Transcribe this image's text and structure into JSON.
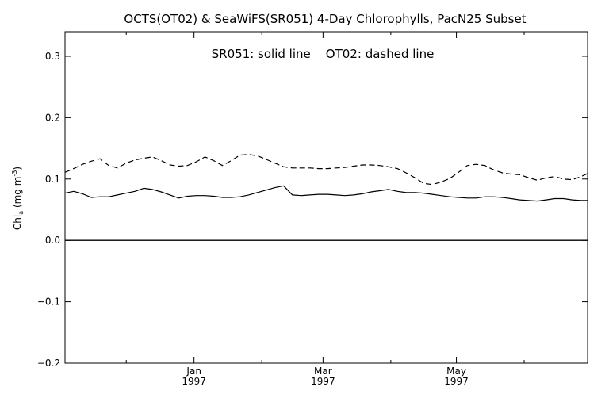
{
  "chart_data": {
    "type": "line",
    "title": "OCTS(OT02) & SeaWiFS(SR051) 4-Day Chlorophylls, PacN25 Subset",
    "annotation": "SR051: solid line    OT02: dashed line",
    "ylabel": {
      "main": "Chl",
      "subscript": "a",
      "units_prefix": " (mg m",
      "units_superscript": "-3",
      "units_suffix": ")"
    },
    "ylim": [
      -0.2,
      0.34
    ],
    "yticks": [
      {
        "v": 0.3,
        "label": "0.3"
      },
      {
        "v": 0.2,
        "label": "0.2"
      },
      {
        "v": 0.1,
        "label": "0.1"
      },
      {
        "v": 0.0,
        "label": "0.0"
      },
      {
        "v": -0.1,
        "label": "−0.1"
      },
      {
        "v": -0.2,
        "label": "−0.2"
      }
    ],
    "xlim": [
      "1996-11-03",
      "1997-06-30"
    ],
    "x_major_ticks": [
      {
        "date": "1997-01-01",
        "label": "Jan",
        "year": "1997"
      },
      {
        "date": "1997-03-01",
        "label": "Mar",
        "year": "1997"
      },
      {
        "date": "1997-05-01",
        "label": "May",
        "year": "1997"
      }
    ],
    "x_minor_ticks": [
      "1996-12-01",
      "1997-02-01",
      "1997-04-01",
      "1997-06-01"
    ],
    "zero_line": true,
    "grid": false,
    "series": [
      {
        "name": "SR051",
        "style": "solid",
        "x": [
          "1996-11-03",
          "1996-11-07",
          "1996-11-11",
          "1996-11-15",
          "1996-11-19",
          "1996-11-23",
          "1996-11-27",
          "1996-12-01",
          "1996-12-05",
          "1996-12-09",
          "1996-12-13",
          "1996-12-17",
          "1996-12-21",
          "1996-12-25",
          "1996-12-29",
          "1997-01-02",
          "1997-01-06",
          "1997-01-10",
          "1997-01-14",
          "1997-01-18",
          "1997-01-22",
          "1997-01-26",
          "1997-01-30",
          "1997-02-03",
          "1997-02-07",
          "1997-02-11",
          "1997-02-15",
          "1997-02-19",
          "1997-02-23",
          "1997-02-27",
          "1997-03-03",
          "1997-03-07",
          "1997-03-11",
          "1997-03-15",
          "1997-03-19",
          "1997-03-23",
          "1997-03-27",
          "1997-03-31",
          "1997-04-04",
          "1997-04-08",
          "1997-04-12",
          "1997-04-16",
          "1997-04-20",
          "1997-04-24",
          "1997-04-28",
          "1997-05-02",
          "1997-05-06",
          "1997-05-10",
          "1997-05-14",
          "1997-05-18",
          "1997-05-22",
          "1997-05-26",
          "1997-05-30",
          "1997-06-03",
          "1997-06-07",
          "1997-06-11",
          "1997-06-15",
          "1997-06-19",
          "1997-06-23",
          "1997-06-27",
          "1997-06-30"
        ],
        "y": [
          0.077,
          0.08,
          0.076,
          0.07,
          0.071,
          0.071,
          0.074,
          0.077,
          0.08,
          0.085,
          0.083,
          0.079,
          0.074,
          0.069,
          0.072,
          0.073,
          0.073,
          0.072,
          0.07,
          0.07,
          0.071,
          0.074,
          0.078,
          0.082,
          0.086,
          0.089,
          0.074,
          0.073,
          0.074,
          0.075,
          0.075,
          0.074,
          0.073,
          0.074,
          0.076,
          0.079,
          0.081,
          0.083,
          0.08,
          0.078,
          0.078,
          0.077,
          0.075,
          0.073,
          0.071,
          0.07,
          0.069,
          0.069,
          0.071,
          0.071,
          0.07,
          0.068,
          0.066,
          0.065,
          0.064,
          0.066,
          0.068,
          0.068,
          0.066,
          0.065,
          0.065
        ]
      },
      {
        "name": "OT02",
        "style": "dashed",
        "x": [
          "1996-11-03",
          "1996-11-07",
          "1996-11-11",
          "1996-11-15",
          "1996-11-19",
          "1996-11-23",
          "1996-11-27",
          "1996-12-01",
          "1996-12-05",
          "1996-12-09",
          "1996-12-13",
          "1996-12-17",
          "1996-12-21",
          "1996-12-25",
          "1996-12-29",
          "1997-01-02",
          "1997-01-06",
          "1997-01-10",
          "1997-01-14",
          "1997-01-18",
          "1997-01-22",
          "1997-01-26",
          "1997-01-30",
          "1997-02-03",
          "1997-02-07",
          "1997-02-11",
          "1997-02-15",
          "1997-02-19",
          "1997-02-23",
          "1997-02-27",
          "1997-03-03",
          "1997-03-07",
          "1997-03-11",
          "1997-03-15",
          "1997-03-19",
          "1997-03-23",
          "1997-03-27",
          "1997-03-31",
          "1997-04-04",
          "1997-04-08",
          "1997-04-12",
          "1997-04-16",
          "1997-04-20",
          "1997-04-24",
          "1997-04-28",
          "1997-05-02",
          "1997-05-06",
          "1997-05-10",
          "1997-05-14",
          "1997-05-18",
          "1997-05-22",
          "1997-05-26",
          "1997-05-30",
          "1997-06-03",
          "1997-06-07",
          "1997-06-11",
          "1997-06-15",
          "1997-06-19",
          "1997-06-23",
          "1997-06-27",
          "1997-06-30"
        ],
        "y": [
          0.111,
          0.117,
          0.124,
          0.129,
          0.133,
          0.122,
          0.118,
          0.126,
          0.131,
          0.134,
          0.136,
          0.13,
          0.123,
          0.121,
          0.122,
          0.128,
          0.136,
          0.13,
          0.122,
          0.13,
          0.139,
          0.14,
          0.138,
          0.132,
          0.126,
          0.12,
          0.118,
          0.118,
          0.118,
          0.117,
          0.117,
          0.118,
          0.119,
          0.121,
          0.123,
          0.123,
          0.122,
          0.12,
          0.117,
          0.11,
          0.102,
          0.093,
          0.091,
          0.095,
          0.101,
          0.111,
          0.122,
          0.124,
          0.122,
          0.115,
          0.11,
          0.108,
          0.107,
          0.102,
          0.098,
          0.102,
          0.104,
          0.1,
          0.099,
          0.104,
          0.109
        ]
      }
    ]
  }
}
